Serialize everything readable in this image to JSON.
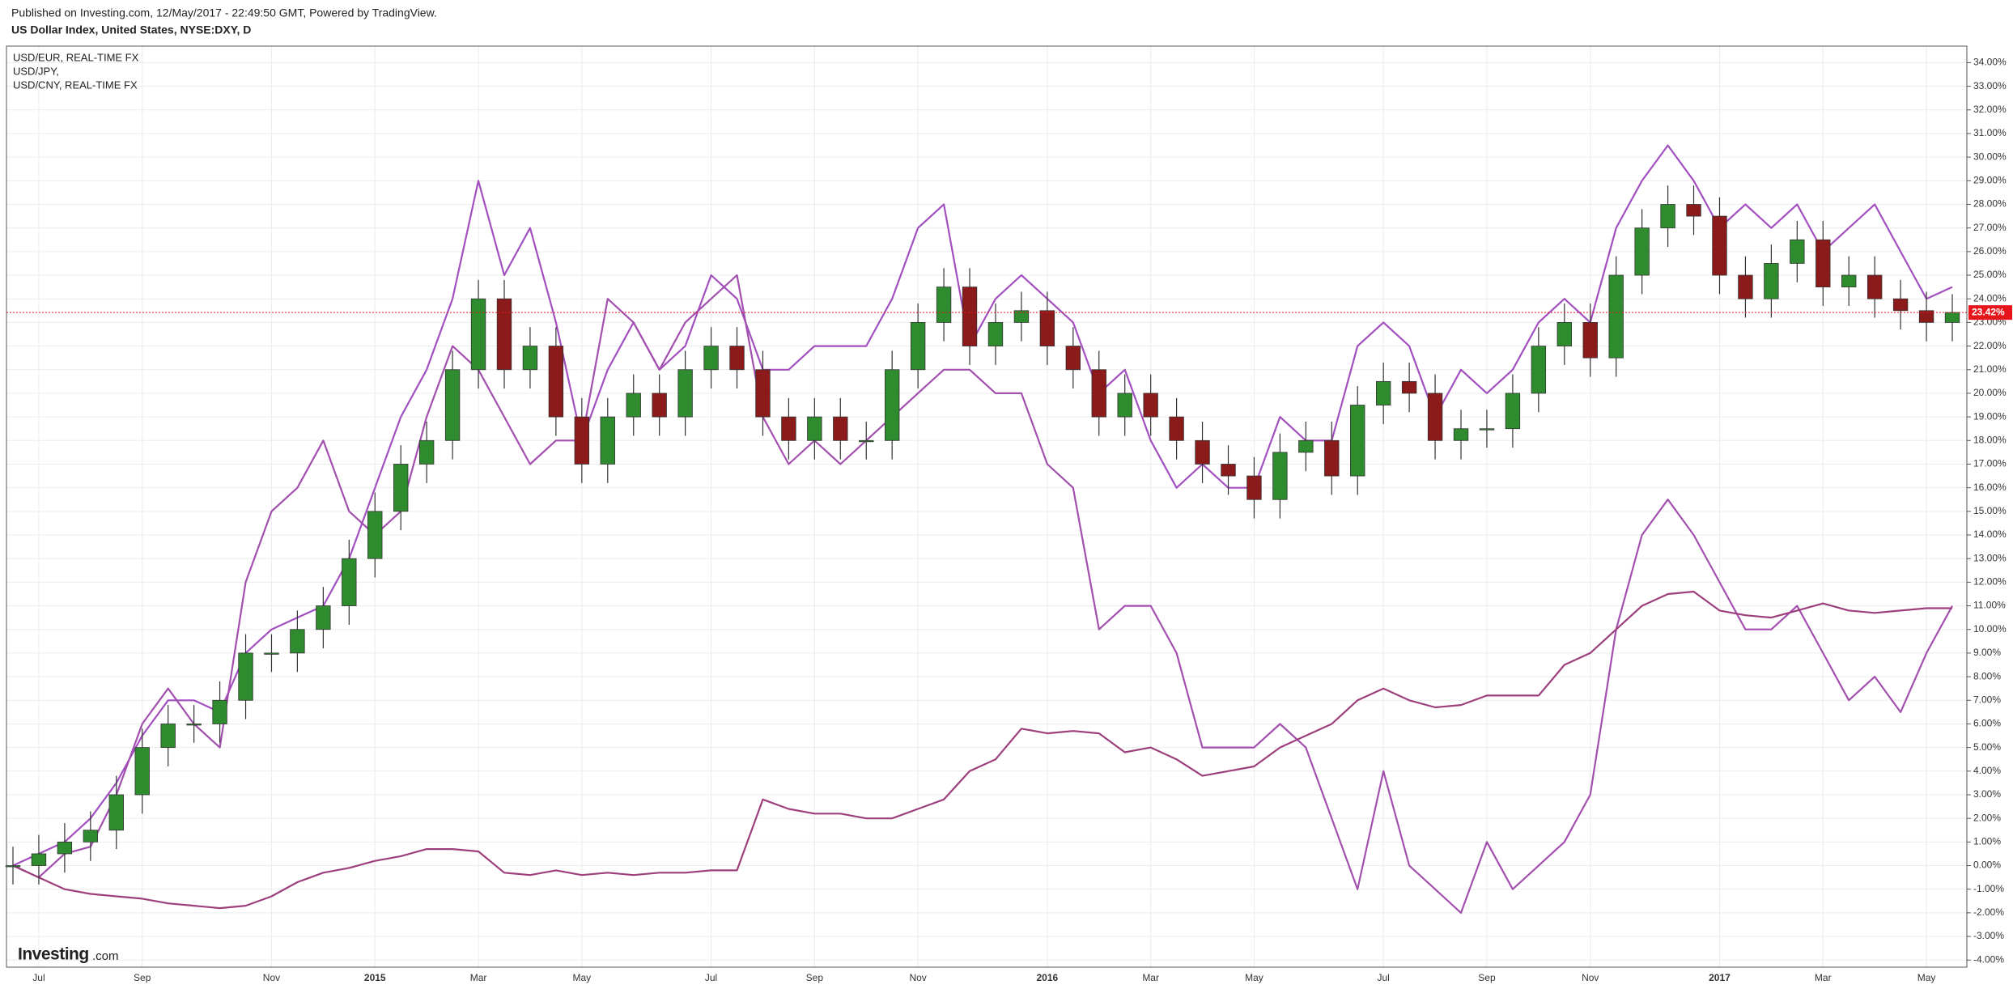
{
  "header": {
    "published": "Published on Investing.com, 12/May/2017 - 22:49:50 GMT, Powered by TradingView.",
    "symbol": "US Dollar Index, United States, NYSE:DXY, D"
  },
  "logo": {
    "name": "Investing",
    "suffix": ".com"
  },
  "chart_data": {
    "type": "candlestick",
    "categories": [
      null,
      "Jul",
      null,
      null,
      null,
      "Sep",
      null,
      null,
      null,
      null,
      "Nov",
      null,
      null,
      null,
      "2015",
      null,
      null,
      null,
      "Mar",
      null,
      null,
      null,
      "May",
      null,
      null,
      null,
      null,
      "Jul",
      null,
      null,
      null,
      "Sep",
      null,
      null,
      null,
      "Nov",
      null,
      null,
      null,
      null,
      "2016",
      null,
      null,
      null,
      "Mar",
      null,
      null,
      null,
      "May",
      null,
      null,
      null,
      null,
      "Jul",
      null,
      null,
      null,
      "Sep",
      null,
      null,
      null,
      "Nov",
      null,
      null,
      null,
      null,
      "2017",
      null,
      null,
      null,
      "Mar",
      null,
      null,
      null,
      "May",
      null
    ],
    "candles": {
      "up_color": "#2e8b2e",
      "down_color": "#8b1a1a",
      "open": [
        0,
        0,
        0.5,
        1,
        1.5,
        3,
        5,
        6,
        6,
        7,
        9,
        9,
        10,
        11,
        13,
        15,
        17,
        18,
        21,
        24,
        21,
        22,
        19,
        17,
        19,
        20,
        19,
        21,
        22,
        21,
        19,
        18,
        19,
        18,
        18,
        21,
        23,
        24.5,
        22,
        23,
        23.5,
        22,
        21,
        19,
        20,
        19,
        18,
        17,
        16.5,
        15.5,
        17.5,
        18,
        16.5,
        19.5,
        20.5,
        20,
        18,
        18.5,
        18.5,
        20,
        22,
        23,
        21.5,
        25,
        27,
        28,
        27.5,
        25,
        24,
        25.5,
        26.5,
        24.5,
        25,
        24,
        23.5,
        23
      ],
      "high": [
        0.8,
        1.3,
        1.8,
        2.3,
        3.8,
        5.8,
        6.8,
        6.8,
        7.8,
        9.8,
        9.8,
        10.8,
        11.8,
        13.8,
        15.8,
        17.8,
        18.8,
        21.8,
        24.8,
        24.8,
        22.8,
        22.8,
        19.8,
        19.8,
        20.8,
        20.8,
        21.8,
        22.8,
        22.8,
        21.8,
        19.8,
        19.8,
        19.8,
        18.8,
        21.8,
        23.8,
        25.3,
        25.3,
        23.8,
        24.3,
        24.3,
        22.8,
        21.8,
        20.8,
        20.8,
        19.8,
        18.8,
        17.8,
        17.3,
        18.3,
        18.8,
        18.8,
        20.3,
        21.3,
        21.3,
        20.8,
        19.3,
        19.3,
        20.8,
        22.8,
        23.8,
        23.8,
        25.8,
        27.8,
        28.8,
        28.8,
        28.3,
        25.8,
        26.3,
        27.3,
        27.3,
        25.8,
        25.8,
        24.8,
        24.3,
        24.2
      ],
      "low": [
        -0.8,
        -0.8,
        -0.3,
        0.2,
        0.7,
        2.2,
        4.2,
        5.2,
        5.2,
        6.2,
        8.2,
        8.2,
        9.2,
        10.2,
        12.2,
        14.2,
        16.2,
        17.2,
        20.2,
        20.2,
        20.2,
        18.2,
        16.2,
        16.2,
        18.2,
        18.2,
        18.2,
        20.2,
        20.2,
        18.2,
        17.2,
        17.2,
        17.2,
        17.2,
        17.2,
        20.2,
        22.2,
        21.2,
        21.2,
        22.2,
        21.2,
        20.2,
        18.2,
        18.2,
        18.2,
        17.2,
        16.2,
        15.7,
        14.7,
        14.7,
        16.7,
        15.7,
        15.7,
        18.7,
        19.2,
        17.2,
        17.2,
        17.7,
        17.7,
        19.2,
        21.2,
        20.7,
        20.7,
        24.2,
        26.2,
        26.7,
        24.2,
        23.2,
        23.2,
        24.7,
        23.7,
        23.7,
        23.2,
        22.7,
        22.2,
        22.2
      ],
      "close": [
        0,
        0.5,
        1,
        1.5,
        3,
        5,
        6,
        6,
        7,
        9,
        9,
        10,
        11,
        13,
        15,
        17,
        18,
        21,
        24,
        21,
        22,
        19,
        17,
        19,
        20,
        19,
        21,
        22,
        21,
        19,
        18,
        19,
        18,
        18,
        21,
        23,
        24.5,
        22,
        23,
        23.5,
        22,
        21,
        19,
        20,
        19,
        18,
        17,
        16.5,
        15.5,
        17.5,
        18,
        16.5,
        19.5,
        20.5,
        20,
        18,
        18.5,
        18.5,
        20,
        22,
        23,
        21.5,
        25,
        27,
        28,
        27.5,
        25,
        24,
        25.5,
        26.5,
        24.5,
        25,
        24,
        23.5,
        23,
        23.42
      ]
    },
    "last_label": {
      "value": 23.42,
      "label": "23.42%",
      "color": "#e8141c"
    },
    "series": [
      {
        "name": "USD/EUR, REAL-TIME FX",
        "color": "#a24fbf",
        "values": [
          0,
          0.5,
          1,
          2,
          3.5,
          5.5,
          7,
          7,
          6.5,
          9,
          10,
          10.5,
          11,
          13,
          16,
          19,
          21,
          24,
          29,
          25,
          27,
          23,
          18,
          21,
          23,
          21,
          22,
          25,
          24,
          21,
          21,
          22,
          22,
          22,
          24,
          27,
          28,
          22,
          24,
          25,
          24,
          23,
          20,
          21,
          18,
          16,
          17,
          16,
          16,
          19,
          18,
          18,
          22,
          23,
          22,
          19,
          21,
          20,
          21,
          23,
          24,
          23,
          27,
          29,
          30.5,
          29,
          27,
          28,
          27,
          28,
          26,
          27,
          28,
          26,
          24,
          24.5
        ]
      },
      {
        "name": "USD/JPY,",
        "color": "#a24fae",
        "values": [
          0,
          -0.5,
          0.5,
          0.8,
          3,
          6,
          7.5,
          6,
          5,
          12,
          15,
          16,
          18,
          15,
          14,
          15,
          19,
          22,
          21,
          19,
          17,
          18,
          18,
          24,
          23,
          21,
          23,
          24,
          25,
          19,
          17,
          18,
          17,
          18,
          19,
          20,
          21,
          21,
          20,
          20,
          17,
          16,
          10,
          11,
          11,
          9,
          5,
          5,
          5,
          6,
          5,
          2,
          -1,
          4,
          0,
          -1,
          -2,
          1,
          -1,
          0,
          1,
          3,
          10,
          14,
          15.5,
          14,
          12,
          10,
          10,
          11,
          9,
          7,
          8,
          6.5,
          9,
          11
        ]
      },
      {
        "name": "USD/CNY, REAL-TIME FX",
        "color": "#9c3f7c",
        "values": [
          0,
          -0.5,
          -1,
          -1.2,
          -1.3,
          -1.4,
          -1.6,
          -1.7,
          -1.8,
          -1.7,
          -1.3,
          -0.7,
          -0.3,
          -0.1,
          0.2,
          0.4,
          0.7,
          0.7,
          0.6,
          -0.3,
          -0.4,
          -0.2,
          -0.4,
          -0.3,
          -0.4,
          -0.3,
          -0.3,
          -0.2,
          -0.2,
          2.8,
          2.4,
          2.2,
          2.2,
          2.0,
          2.0,
          2.4,
          2.8,
          4.0,
          4.5,
          5.8,
          5.6,
          5.7,
          5.6,
          4.8,
          5.0,
          4.5,
          3.8,
          4.0,
          4.2,
          5.0,
          5.5,
          6.0,
          7.0,
          7.5,
          7.0,
          6.7,
          6.8,
          7.2,
          7.2,
          7.2,
          8.5,
          9.0,
          10.0,
          11.0,
          11.5,
          11.6,
          10.8,
          10.6,
          10.5,
          10.8,
          11.1,
          10.8,
          10.7,
          10.8,
          10.9,
          10.9
        ]
      }
    ],
    "ylim": [
      -4.3,
      34.7
    ],
    "yticks": [
      {
        "value": -4,
        "label": "-4.00%"
      },
      {
        "value": -3,
        "label": "-3.00%"
      },
      {
        "value": -2,
        "label": "-2.00%"
      },
      {
        "value": -1,
        "label": "-1.00%"
      },
      {
        "value": 0,
        "label": "0.00%"
      },
      {
        "value": 1,
        "label": "1.00%"
      },
      {
        "value": 2,
        "label": "2.00%"
      },
      {
        "value": 3,
        "label": "3.00%"
      },
      {
        "value": 4,
        "label": "4.00%"
      },
      {
        "value": 5,
        "label": "5.00%"
      },
      {
        "value": 6,
        "label": "6.00%"
      },
      {
        "value": 7,
        "label": "7.00%"
      },
      {
        "value": 8,
        "label": "8.00%"
      },
      {
        "value": 9,
        "label": "9.00%"
      },
      {
        "value": 10,
        "label": "10.00%"
      },
      {
        "value": 11,
        "label": "11.00%"
      },
      {
        "value": 12,
        "label": "12.00%"
      },
      {
        "value": 13,
        "label": "13.00%"
      },
      {
        "value": 14,
        "label": "14.00%"
      },
      {
        "value": 15,
        "label": "15.00%"
      },
      {
        "value": 16,
        "label": "16.00%"
      },
      {
        "value": 17,
        "label": "17.00%"
      },
      {
        "value": 18,
        "label": "18.00%"
      },
      {
        "value": 19,
        "label": "19.00%"
      },
      {
        "value": 20,
        "label": "20.00%"
      },
      {
        "value": 21,
        "label": "21.00%"
      },
      {
        "value": 22,
        "label": "22.00%"
      },
      {
        "value": 23,
        "label": "23.00%"
      },
      {
        "value": 24,
        "label": "24.00%"
      },
      {
        "value": 25,
        "label": "25.00%"
      },
      {
        "value": 26,
        "label": "26.00%"
      },
      {
        "value": 27,
        "label": "27.00%"
      },
      {
        "value": 28,
        "label": "28.00%"
      },
      {
        "value": 29,
        "label": "29.00%"
      },
      {
        "value": 30,
        "label": "30.00%"
      },
      {
        "value": 31,
        "label": "31.00%"
      },
      {
        "value": 32,
        "label": "32.00%"
      },
      {
        "value": 33,
        "label": "33.00%"
      },
      {
        "value": 34,
        "label": "34.00%"
      }
    ],
    "grid": true
  }
}
